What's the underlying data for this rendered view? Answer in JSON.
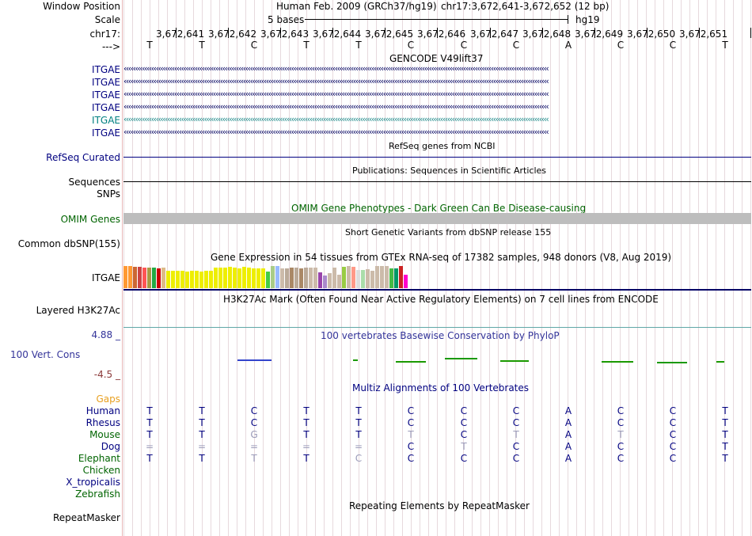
{
  "header": {
    "window_position_label": "Window Position",
    "scale_label": "Scale",
    "chrom_label": "chr17:",
    "strand_label": "--->",
    "assembly_title": "Human Feb. 2009 (GRCh37/hg19)",
    "position_text": "chr17:3,672,641-3,672,652 (12 bp)",
    "scale_text": "5 bases",
    "scale_db": "hg19"
  },
  "ruler": {
    "coords": [
      "3,672,641",
      "3,672,642",
      "3,672,643",
      "3,672,644",
      "3,672,645",
      "3,672,646",
      "3,672,647",
      "3,672,648",
      "3,672,649",
      "3,672,650",
      "3,672,651"
    ],
    "bases": [
      "T",
      "T",
      "C",
      "T",
      "T",
      "C",
      "C",
      "C",
      "A",
      "C",
      "C",
      "T"
    ]
  },
  "gencode": {
    "title": "GENCODE V49lift37",
    "labels": [
      "ITGAE",
      "ITGAE",
      "ITGAE",
      "ITGAE",
      "ITGAE",
      "ITGAE"
    ],
    "arrows": "‹‹‹‹‹‹‹‹‹‹‹‹‹‹‹‹‹‹‹‹‹‹‹‹‹‹‹‹‹‹‹‹‹‹‹‹‹‹‹‹‹‹‹‹‹‹‹‹‹‹‹‹‹‹‹‹‹‹‹‹‹‹‹‹‹‹‹‹‹‹‹‹‹‹‹‹‹‹‹‹‹‹‹‹‹‹‹‹‹‹‹‹‹‹‹‹‹‹‹‹‹‹‹‹‹‹‹‹‹‹‹‹‹‹‹‹‹‹‹‹‹‹‹‹‹‹‹‹‹‹‹‹‹‹‹‹‹‹‹‹‹‹‹‹‹‹‹‹‹‹‹‹‹‹‹‹‹‹‹‹‹‹‹‹‹‹‹‹‹‹‹‹‹‹‹‹‹‹‹‹‹‹‹‹‹"
  },
  "refseq": {
    "label": "RefSeq Curated",
    "title": "RefSeq genes from NCBI"
  },
  "publications": {
    "title": "Publications: Sequences in Scientific Articles",
    "label": "Sequences"
  },
  "snps": {
    "label": "SNPs"
  },
  "omim": {
    "title": "OMIM Gene Phenotypes - Dark Green Can Be Disease-causing",
    "label": "OMIM Genes"
  },
  "dbsnp": {
    "title": "Short Genetic Variants from dbSNP release 155",
    "label": "Common dbSNP(155)"
  },
  "gtex": {
    "title": "Gene Expression in 54 tissues from GTEx RNA-seq of 17382 samples, 948 donors (V8, Aug 2019)",
    "label": "ITGAE",
    "bars": [
      {
        "v": 0.97,
        "c": "#ff9933"
      },
      {
        "v": 0.97,
        "c": "#ff9933"
      },
      {
        "v": 0.93,
        "c": "#cc6633"
      },
      {
        "v": 0.92,
        "c": "#cc4444"
      },
      {
        "v": 0.9,
        "c": "#ff5555"
      },
      {
        "v": 0.9,
        "c": "#aa9944"
      },
      {
        "v": 0.9,
        "c": "#22aa44"
      },
      {
        "v": 0.86,
        "c": "#cc0000"
      },
      {
        "v": 0.89,
        "c": "#ddbb88"
      },
      {
        "v": 0.76,
        "c": "#eeee00"
      },
      {
        "v": 0.75,
        "c": "#eeee00"
      },
      {
        "v": 0.77,
        "c": "#eeee00"
      },
      {
        "v": 0.76,
        "c": "#eeee00"
      },
      {
        "v": 0.74,
        "c": "#eeee00"
      },
      {
        "v": 0.77,
        "c": "#eeee00"
      },
      {
        "v": 0.76,
        "c": "#eeee00"
      },
      {
        "v": 0.74,
        "c": "#eeee00"
      },
      {
        "v": 0.75,
        "c": "#eeee00"
      },
      {
        "v": 0.75,
        "c": "#eeee00"
      },
      {
        "v": 0.9,
        "c": "#eeee00"
      },
      {
        "v": 0.88,
        "c": "#eeee00"
      },
      {
        "v": 0.9,
        "c": "#eeee00"
      },
      {
        "v": 0.93,
        "c": "#eeee00"
      },
      {
        "v": 0.9,
        "c": "#eeee00"
      },
      {
        "v": 0.86,
        "c": "#eeee00"
      },
      {
        "v": 0.92,
        "c": "#eeee00"
      },
      {
        "v": 0.9,
        "c": "#eeee00"
      },
      {
        "v": 0.87,
        "c": "#eeee00"
      },
      {
        "v": 0.87,
        "c": "#eeee00"
      },
      {
        "v": 0.87,
        "c": "#eeee00"
      },
      {
        "v": 0.72,
        "c": "#44cc44"
      },
      {
        "v": 0.95,
        "c": "#aacc88"
      },
      {
        "v": 0.98,
        "c": "#99bbff"
      },
      {
        "v": 0.86,
        "c": "#ccbbaa"
      },
      {
        "v": 0.86,
        "c": "#bbaa99"
      },
      {
        "v": 0.9,
        "c": "#aa8866"
      },
      {
        "v": 0.88,
        "c": "#bbaa99"
      },
      {
        "v": 0.87,
        "c": "#aa8866"
      },
      {
        "v": 0.88,
        "c": "#bbaa99"
      },
      {
        "v": 0.9,
        "c": "#ccbbaa"
      },
      {
        "v": 0.9,
        "c": "#ccbbaa"
      },
      {
        "v": 0.69,
        "c": "#9944aa"
      },
      {
        "v": 0.56,
        "c": "#aa88cc"
      },
      {
        "v": 0.65,
        "c": "#ccbbaa"
      },
      {
        "v": 0.9,
        "c": "#ccbbaa"
      },
      {
        "v": 0.6,
        "c": "#ccbbaa"
      },
      {
        "v": 0.93,
        "c": "#99cc44"
      },
      {
        "v": 0.95,
        "c": "#ccbbaa"
      },
      {
        "v": 0.93,
        "c": "#ff9988"
      },
      {
        "v": 0.78,
        "c": "#dddddd"
      },
      {
        "v": 0.8,
        "c": "#aaddaa"
      },
      {
        "v": 0.84,
        "c": "#ccbbaa"
      },
      {
        "v": 0.76,
        "c": "#ccbbaa"
      },
      {
        "v": 0.96,
        "c": "#ccbbaa"
      },
      {
        "v": 0.97,
        "c": "#ccbbaa"
      },
      {
        "v": 0.95,
        "c": "#ccbbaa"
      },
      {
        "v": 0.87,
        "c": "#44bb44"
      },
      {
        "v": 0.85,
        "c": "#009966"
      },
      {
        "v": 0.95,
        "c": "#cc2222"
      },
      {
        "v": 0.59,
        "c": "#ff00cc"
      }
    ]
  },
  "h3k27ac": {
    "title": "H3K27Ac Mark (Often Found Near Active Regulatory Elements) on 7 cell lines from ENCODE",
    "label": "Layered H3K27Ac"
  },
  "phylop": {
    "title": "100 vertebrates Basewise Conservation by PhyloP",
    "label": "100 Vert. Cons",
    "max_label": "4.88 _",
    "min_label": "-4.5 _",
    "colors": {
      "pos": "#1a1acc",
      "neg": "#cc2222",
      "cons": "#1a9900"
    }
  },
  "multiz": {
    "title": "Multiz Alignments of 100 Vertebrates",
    "gaps_label": "Gaps",
    "species": [
      {
        "name": "Human",
        "color": "#000080",
        "bases": [
          "T",
          "T",
          "C",
          "T",
          "T",
          "C",
          "C",
          "C",
          "A",
          "C",
          "C",
          "T"
        ],
        "dim": [
          0,
          0,
          0,
          0,
          0,
          0,
          0,
          0,
          0,
          0,
          0,
          0
        ]
      },
      {
        "name": "Rhesus",
        "color": "#000080",
        "bases": [
          "T",
          "T",
          "C",
          "T",
          "T",
          "C",
          "C",
          "C",
          "A",
          "C",
          "C",
          "T"
        ],
        "dim": [
          0,
          0,
          0,
          0,
          0,
          0,
          0,
          0,
          0,
          0,
          0,
          0
        ]
      },
      {
        "name": "Mouse",
        "color": "#006400",
        "bases": [
          "T",
          "T",
          "G",
          "T",
          "T",
          "T",
          "C",
          "T",
          "A",
          "T",
          "C",
          "T"
        ],
        "dim": [
          0,
          0,
          1,
          0,
          0,
          1,
          0,
          1,
          0,
          1,
          0,
          0
        ]
      },
      {
        "name": "Dog",
        "color": "#000080",
        "bases": [
          "=",
          "=",
          "=",
          "=",
          "=",
          "C",
          "T",
          "C",
          "A",
          "C",
          "C",
          "T"
        ],
        "dim": [
          1,
          1,
          1,
          1,
          1,
          0,
          1,
          0,
          0,
          0,
          0,
          0
        ]
      },
      {
        "name": "Elephant",
        "color": "#006400",
        "bases": [
          "T",
          "T",
          "T",
          "T",
          "C",
          "C",
          "C",
          "C",
          "A",
          "C",
          "C",
          "T"
        ],
        "dim": [
          0,
          0,
          1,
          0,
          1,
          0,
          0,
          0,
          0,
          0,
          0,
          0
        ]
      },
      {
        "name": "Chicken",
        "color": "#006400",
        "bases": [],
        "dim": []
      },
      {
        "name": "X_tropicalis",
        "color": "#000080",
        "bases": [],
        "dim": []
      },
      {
        "name": "Zebrafish",
        "color": "#006400",
        "bases": [],
        "dim": []
      }
    ]
  },
  "repeatmasker": {
    "title": "Repeating Elements by RepeatMasker",
    "label": "RepeatMasker"
  }
}
